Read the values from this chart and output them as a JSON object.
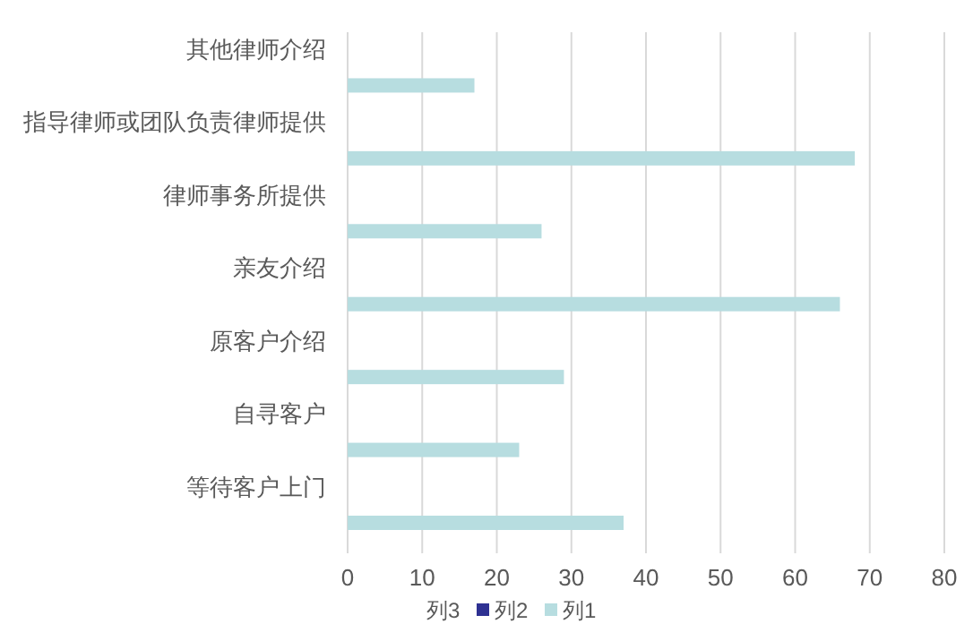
{
  "chart_data": {
    "type": "bar",
    "orientation": "horizontal",
    "categories": [
      "其他律师介绍",
      "指导律师或团队负责律师提供",
      "律师事务所提供",
      "亲友介绍",
      "原客户介绍",
      "自寻客户",
      "等待客户上门"
    ],
    "series": [
      {
        "name": "列1",
        "color": "#b7dde0",
        "values": [
          17,
          68,
          26,
          66,
          29,
          23,
          37
        ]
      },
      {
        "name": "列2",
        "color": "#2e3192",
        "values": [
          null,
          null,
          null,
          null,
          null,
          null,
          null
        ]
      },
      {
        "name": "列3",
        "values": [
          null,
          null,
          null,
          null,
          null,
          null,
          null
        ]
      }
    ],
    "xlim": [
      0,
      80
    ],
    "xticks": [
      0,
      10,
      20,
      30,
      40,
      50,
      60,
      70,
      80
    ],
    "grid": "x",
    "legend": "bottom"
  }
}
